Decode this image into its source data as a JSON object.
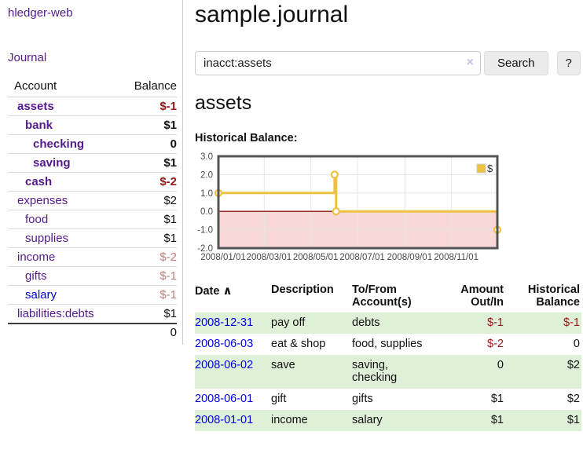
{
  "app": {
    "brand": "hledger-web",
    "nav_journal": "Journal"
  },
  "header": {
    "title": "sample.journal"
  },
  "search": {
    "value": "inacct:assets",
    "clear_icon": "×",
    "button": "Search",
    "help_button": "?"
  },
  "account_page": {
    "heading": "assets"
  },
  "sidebar": {
    "account_header": "Account",
    "balance_header": "Balance",
    "accounts": [
      {
        "name": "assets",
        "indent": 0,
        "bold": true,
        "balance": "$-1",
        "balance_style": "negative",
        "link_style": "visited"
      },
      {
        "name": "bank",
        "indent": 1,
        "bold": true,
        "balance": "$1",
        "balance_style": "normal",
        "link_style": "visited"
      },
      {
        "name": "checking",
        "indent": 2,
        "bold": true,
        "balance": "0",
        "balance_style": "normal",
        "link_style": "visited"
      },
      {
        "name": "saving",
        "indent": 2,
        "bold": true,
        "balance": "$1",
        "balance_style": "normal",
        "link_style": "visited"
      },
      {
        "name": "cash",
        "indent": 1,
        "bold": true,
        "balance": "$-2",
        "balance_style": "negative",
        "link_style": "visited"
      },
      {
        "name": "expenses",
        "indent": 0,
        "bold": false,
        "balance": "$2",
        "balance_style": "normal",
        "link_style": "visited"
      },
      {
        "name": "food",
        "indent": 1,
        "bold": false,
        "balance": "$1",
        "balance_style": "normal",
        "link_style": "visited"
      },
      {
        "name": "supplies",
        "indent": 1,
        "bold": false,
        "balance": "$1",
        "balance_style": "normal",
        "link_style": "visited"
      },
      {
        "name": "income",
        "indent": 0,
        "bold": false,
        "balance": "$-2",
        "balance_style": "negative-muted",
        "link_style": "visited"
      },
      {
        "name": "gifts",
        "indent": 1,
        "bold": false,
        "balance": "$-1",
        "balance_style": "negative-muted",
        "link_style": "visited"
      },
      {
        "name": "salary",
        "indent": 1,
        "bold": false,
        "balance": "$-1",
        "balance_style": "negative-muted",
        "link_style": "unvisited"
      },
      {
        "name": "liabilities:debts",
        "indent": 0,
        "bold": false,
        "balance": "$1",
        "balance_style": "normal",
        "link_style": "visited"
      }
    ],
    "total": "0"
  },
  "chart_data": {
    "type": "line",
    "step": true,
    "title": "Historical Balance:",
    "series": [
      {
        "name": "$",
        "color": "#edc240",
        "points": [
          {
            "date": "2008-01-01",
            "day": 0,
            "value": 1
          },
          {
            "date": "2008-06-01",
            "day": 152,
            "value": 2
          },
          {
            "date": "2008-06-03",
            "day": 154,
            "value": 0
          },
          {
            "date": "2008-12-31",
            "day": 365,
            "value": -1
          }
        ]
      }
    ],
    "x_range_days": [
      0,
      365
    ],
    "x_ticks": [
      {
        "day": 0,
        "label": "2008/01/01"
      },
      {
        "day": 60,
        "label": "2008/03/01"
      },
      {
        "day": 121,
        "label": "2008/05/01"
      },
      {
        "day": 182,
        "label": "2008/07/01"
      },
      {
        "day": 244,
        "label": "2008/09/01"
      },
      {
        "day": 305,
        "label": "2008/11/01"
      }
    ],
    "y_ticks": [
      {
        "value": 3,
        "label": "3.0"
      },
      {
        "value": 2,
        "label": "2.0"
      },
      {
        "value": 1,
        "label": "1.0"
      },
      {
        "value": 0,
        "label": "0.0"
      },
      {
        "value": -1,
        "label": "-1.0"
      },
      {
        "value": -2,
        "label": "-2.0"
      }
    ],
    "ylim": [
      -2,
      3
    ],
    "legend": {
      "label": "$",
      "position": "top-right"
    },
    "colors": {
      "negative_region": "#f9d8d8",
      "zero_line": "#8b1414",
      "grid": "#e6e6e6",
      "border": "#545454",
      "tick_text": "#4a4a4a",
      "marker_fill": "#ffffff",
      "legend_box_border": "#cccccc"
    }
  },
  "register": {
    "headers": {
      "date": "Date",
      "description": "Description",
      "tofrom": "To/From Account(s)",
      "amount": "Amount Out/In",
      "balance": "Historical Balance"
    },
    "sort_ascending_icon": "∧",
    "rows": [
      {
        "date": "2008-12-31",
        "description": "pay off",
        "accounts": "debts",
        "amount": "$-1",
        "amount_negative": true,
        "balance": "$-1",
        "balance_negative": true
      },
      {
        "date": "2008-06-03",
        "description": "eat & shop",
        "accounts": "food, supplies",
        "amount": "$-2",
        "amount_negative": true,
        "balance": "0",
        "balance_negative": false
      },
      {
        "date": "2008-06-02",
        "description": "save",
        "accounts": "saving, checking",
        "amount": "0",
        "amount_negative": false,
        "balance": "$2",
        "balance_negative": false
      },
      {
        "date": "2008-06-01",
        "description": "gift",
        "accounts": "gifts",
        "amount": "$1",
        "amount_negative": false,
        "balance": "$2",
        "balance_negative": false
      },
      {
        "date": "2008-01-01",
        "description": "income",
        "accounts": "salary",
        "amount": "$1",
        "amount_negative": false,
        "balance": "$1",
        "balance_negative": false
      }
    ]
  }
}
